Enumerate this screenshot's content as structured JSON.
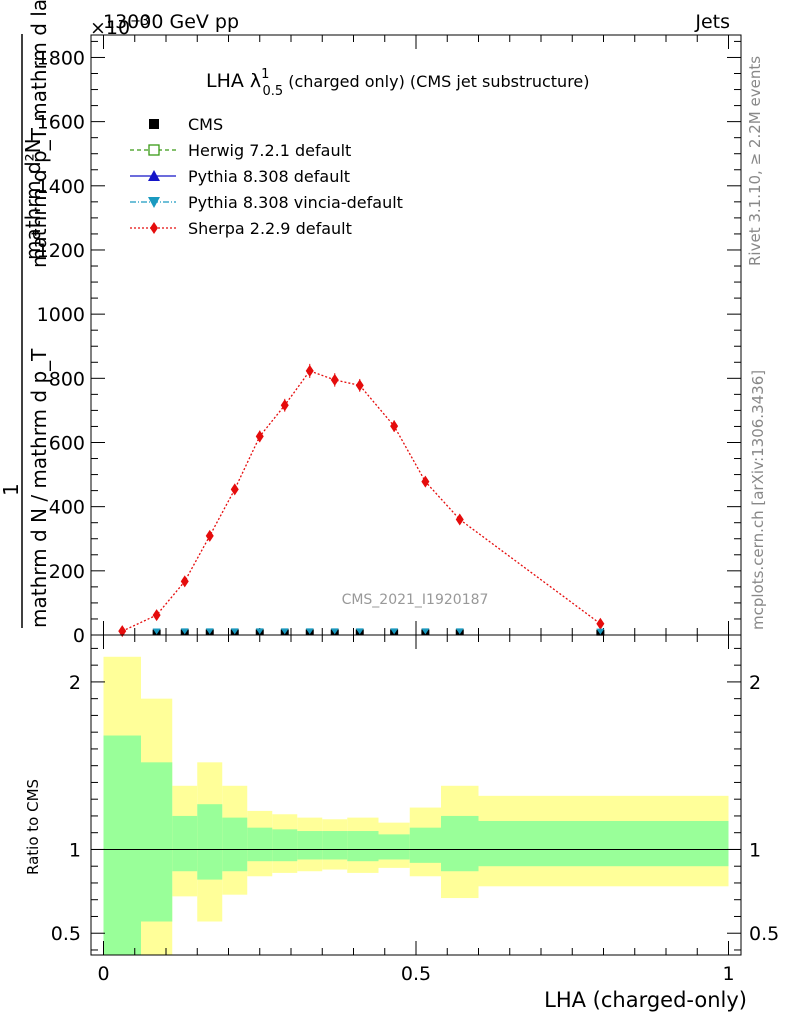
{
  "header": {
    "left": "13000 GeV pp",
    "right": "Jets",
    "exponent": "×10",
    "exponent_power": "−3"
  },
  "side_texts": {
    "rivet": "Rivet 3.1.10, ≥ 2.2M events",
    "mcplots": "mcplots.cern.ch [arXiv:1306.3436]"
  },
  "main_title": {
    "prefix": "LHA λ",
    "sup": "1",
    "sub": "0.5",
    "rest": " (charged only) (CMS jet substructure)"
  },
  "analysis_label": "CMS_2021_I1920187",
  "chart_data": [
    {
      "type": "scatter",
      "title": "LHA λ¹₀.₅ (charged only) (CMS jet substructure)",
      "ylabel_parts": {
        "top": "mathrm d²N",
        "bottom": "mathrm d p_T mathrm d lambda",
        "frac_num": "1",
        "frac_den": "mathrm d N / mathrm d p_T"
      },
      "y_multiplier": 0.001,
      "ylim": [
        0,
        1870
      ],
      "xlim": [
        -0.02,
        1.02
      ],
      "yticks": [
        0,
        200,
        400,
        600,
        800,
        1000,
        1200,
        1400,
        1600,
        1800
      ],
      "ytick_labels": [
        "0",
        "200",
        "400",
        "600",
        "800",
        "1000",
        "1200",
        "1400",
        "1600",
        "1800"
      ],
      "legend": [
        {
          "name": "CMS",
          "color": "#000000",
          "marker": "square",
          "line": "none"
        },
        {
          "name": "Herwig 7.2.1 default",
          "color": "#3a9a16",
          "marker": "open-square",
          "line": "dashed"
        },
        {
          "name": "Pythia 8.308 default",
          "color": "#1515c8",
          "marker": "triangle-up",
          "line": "solid"
        },
        {
          "name": "Pythia 8.308 vincia-default",
          "color": "#1a9ac0",
          "marker": "triangle-down",
          "line": "dashdot"
        },
        {
          "name": "Sherpa 2.2.9 default",
          "color": "#e50c0c",
          "marker": "diamond",
          "line": "dotted"
        }
      ],
      "series": [
        {
          "name": "Sherpa 2.2.9 default",
          "color": "#e50c0c",
          "x": [
            0.03,
            0.085,
            0.13,
            0.17,
            0.21,
            0.25,
            0.29,
            0.33,
            0.37,
            0.41,
            0.465,
            0.515,
            0.57,
            0.795
          ],
          "y": [
            12,
            62,
            167,
            309,
            454,
            619,
            716,
            823,
            795,
            778,
            651,
            478,
            360,
            35
          ],
          "err": [
            4,
            6,
            9,
            12,
            15,
            18,
            20,
            22,
            21,
            20,
            18,
            15,
            12,
            6
          ]
        },
        {
          "name": "CMS",
          "color": "#000000",
          "x": [
            0.085,
            0.13,
            0.17,
            0.21,
            0.25,
            0.29,
            0.33,
            0.37,
            0.41,
            0.465,
            0.515,
            0.57,
            0.795
          ],
          "y": [
            1.5,
            2,
            2,
            2,
            2,
            2,
            2,
            2,
            2,
            2,
            2,
            2,
            1
          ]
        },
        {
          "name": "Pythia 8.308 vincia-default",
          "color": "#1a9ac0",
          "x": [
            0.085,
            0.13,
            0.17,
            0.21,
            0.25,
            0.29,
            0.33,
            0.37,
            0.41,
            0.465,
            0.515,
            0.57,
            0.795
          ],
          "y": [
            1.5,
            2,
            2,
            2,
            2,
            2,
            2,
            2,
            2,
            2,
            2,
            2,
            1
          ]
        }
      ]
    },
    {
      "type": "area",
      "ylabel": "Ratio to CMS",
      "ylim": [
        0.37,
        2.28
      ],
      "xlim": [
        -0.02,
        1.02
      ],
      "yticks": [
        0.5,
        1,
        2
      ],
      "ytick_labels": [
        "0.5",
        "1",
        "2"
      ],
      "xticks": [
        0,
        0.5,
        1
      ],
      "xtick_labels": [
        "0",
        "0.5",
        "1"
      ],
      "xlabel": "LHA (charged-only)",
      "reference_line": 1,
      "bins": [
        {
          "x0": 0.0,
          "x1": 0.06,
          "g_lo": 0.37,
          "g_hi": 1.68,
          "y_lo": 0.37,
          "y_hi": 2.15
        },
        {
          "x0": 0.06,
          "x1": 0.11,
          "g_lo": 0.57,
          "g_hi": 1.52,
          "y_lo": 0.37,
          "y_hi": 1.9
        },
        {
          "x0": 0.11,
          "x1": 0.15,
          "g_lo": 0.87,
          "g_hi": 1.2,
          "y_lo": 0.72,
          "y_hi": 1.38
        },
        {
          "x0": 0.15,
          "x1": 0.19,
          "g_lo": 0.82,
          "g_hi": 1.27,
          "y_lo": 0.57,
          "y_hi": 1.52
        },
        {
          "x0": 0.19,
          "x1": 0.23,
          "g_lo": 0.87,
          "g_hi": 1.19,
          "y_lo": 0.73,
          "y_hi": 1.38
        },
        {
          "x0": 0.23,
          "x1": 0.27,
          "g_lo": 0.93,
          "g_hi": 1.13,
          "y_lo": 0.84,
          "y_hi": 1.23
        },
        {
          "x0": 0.27,
          "x1": 0.31,
          "g_lo": 0.93,
          "g_hi": 1.12,
          "y_lo": 0.86,
          "y_hi": 1.21
        },
        {
          "x0": 0.31,
          "x1": 0.35,
          "g_lo": 0.94,
          "g_hi": 1.11,
          "y_lo": 0.87,
          "y_hi": 1.19
        },
        {
          "x0": 0.35,
          "x1": 0.39,
          "g_lo": 0.94,
          "g_hi": 1.11,
          "y_lo": 0.88,
          "y_hi": 1.18
        },
        {
          "x0": 0.39,
          "x1": 0.44,
          "g_lo": 0.93,
          "g_hi": 1.11,
          "y_lo": 0.86,
          "y_hi": 1.19
        },
        {
          "x0": 0.44,
          "x1": 0.49,
          "g_lo": 0.94,
          "g_hi": 1.09,
          "y_lo": 0.89,
          "y_hi": 1.16
        },
        {
          "x0": 0.49,
          "x1": 0.54,
          "g_lo": 0.92,
          "g_hi": 1.13,
          "y_lo": 0.84,
          "y_hi": 1.25
        },
        {
          "x0": 0.54,
          "x1": 0.6,
          "g_lo": 0.87,
          "g_hi": 1.2,
          "y_lo": 0.71,
          "y_hi": 1.38
        },
        {
          "x0": 0.6,
          "x1": 1.0,
          "g_lo": 0.9,
          "g_hi": 1.17,
          "y_lo": 0.78,
          "y_hi": 1.32
        }
      ],
      "band_colors": {
        "inner": "#99ff99",
        "outer": "#ffff99"
      }
    }
  ]
}
